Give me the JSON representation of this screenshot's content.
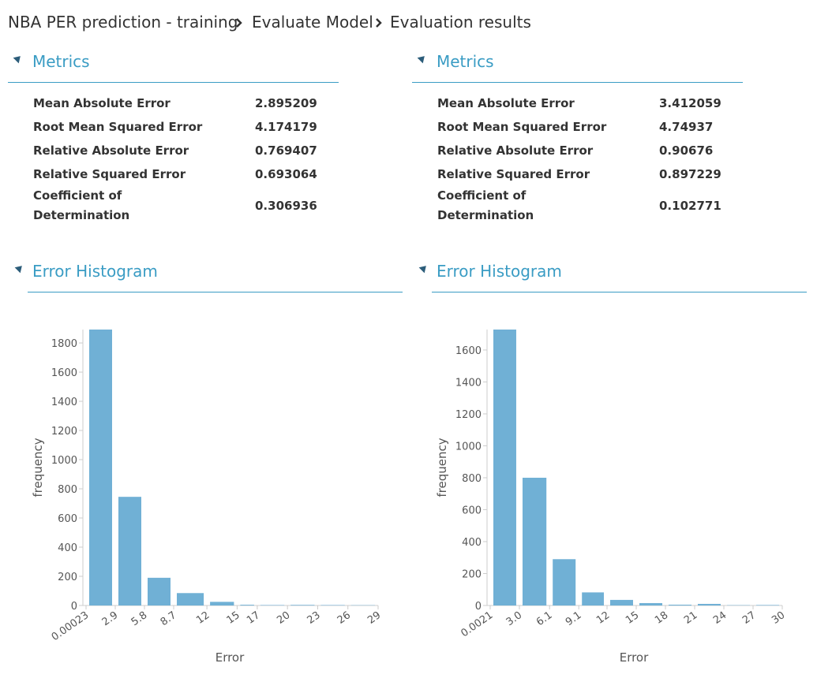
{
  "breadcrumb": [
    "NBA PER prediction - training",
    "Evaluate Model",
    "Evaluation results"
  ],
  "panels": [
    {
      "metrics_title": "Metrics",
      "histogram_title": "Error Histogram",
      "metrics": [
        {
          "label": "Mean Absolute Error",
          "value": 2.895209
        },
        {
          "label": "Root Mean Squared Error",
          "value": 4.174179
        },
        {
          "label": "Relative Absolute Error",
          "value": 0.769407
        },
        {
          "label": "Relative Squared Error",
          "value": 0.693064
        },
        {
          "label": "Coefficient of Determination",
          "value": 0.306936
        }
      ]
    },
    {
      "metrics_title": "Metrics",
      "histogram_title": "Error Histogram",
      "metrics": [
        {
          "label": "Mean Absolute Error",
          "value": 3.412059
        },
        {
          "label": "Root Mean Squared Error",
          "value": 4.74937
        },
        {
          "label": "Relative Absolute Error",
          "value": 0.90676
        },
        {
          "label": "Relative Squared Error",
          "value": 0.897229
        },
        {
          "label": "Coefficient of Determination",
          "value": 0.102771
        }
      ]
    }
  ],
  "chart_data": [
    {
      "type": "histogram",
      "xlabel": "Error",
      "ylabel": "frequency",
      "color": "#70b0d5",
      "bins": [
        0.00023,
        2.9,
        5.8,
        8.7,
        12,
        15,
        17,
        20,
        23,
        26,
        29
      ],
      "counts": [
        1892,
        745,
        190,
        85,
        25,
        5,
        3,
        4,
        3,
        2
      ],
      "xlim": [
        0.00023,
        29
      ],
      "xticks": [
        0.00023,
        2.9,
        5.8,
        8.7,
        12,
        15,
        17,
        20,
        23,
        26,
        29
      ],
      "ylim": [
        0,
        1892
      ],
      "yticks": [
        0,
        200,
        400,
        600,
        800,
        1000,
        1200,
        1400,
        1600,
        1800
      ]
    },
    {
      "type": "histogram",
      "xlabel": "Error",
      "ylabel": "frequency",
      "color": "#70b0d5",
      "bins": [
        0.0021,
        3,
        6.1,
        9.1,
        12,
        15,
        18,
        21,
        24,
        27,
        30
      ],
      "counts": [
        1728,
        800,
        290,
        82,
        35,
        15,
        5,
        10,
        2,
        3
      ],
      "xlim": [
        0.0021,
        30
      ],
      "xticks": [
        0.0021,
        {
          "value": 3,
          "label": "3.0"
        },
        6.1,
        9.1,
        12,
        15,
        18,
        21,
        24,
        27,
        30
      ],
      "ylim": [
        0,
        1728
      ],
      "yticks": [
        0,
        200,
        400,
        600,
        800,
        1000,
        1200,
        1400,
        1600
      ]
    }
  ]
}
